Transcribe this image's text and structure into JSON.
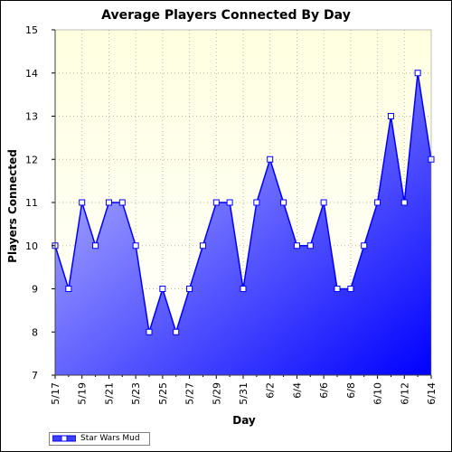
{
  "chart_data": {
    "type": "area",
    "title": "Average Players Connected By Day",
    "xlabel": "Day",
    "ylabel": "Players Connected",
    "ylim": [
      7,
      15
    ],
    "yticks": [
      7,
      8,
      9,
      10,
      11,
      12,
      13,
      14,
      15
    ],
    "x": [
      "5/17",
      "5/18",
      "5/19",
      "5/20",
      "5/21",
      "5/22",
      "5/23",
      "5/24",
      "5/25",
      "5/26",
      "5/27",
      "5/28",
      "5/29",
      "5/30",
      "5/31",
      "6/1",
      "6/2",
      "6/3",
      "6/4",
      "6/5",
      "6/6",
      "6/7",
      "6/8",
      "6/9",
      "6/10",
      "6/11",
      "6/12",
      "6/13",
      "6/14"
    ],
    "x_tick_labels": [
      "5/17",
      "5/19",
      "5/21",
      "5/23",
      "5/25",
      "5/27",
      "5/29",
      "5/31",
      "6/2",
      "6/4",
      "6/6",
      "6/8",
      "6/10",
      "6/12",
      "6/14"
    ],
    "series": [
      {
        "name": "Star Wars Mud",
        "values": [
          10,
          9,
          11,
          10,
          11,
          11,
          10,
          8,
          9,
          8,
          9,
          10,
          11,
          11,
          9,
          11,
          12,
          11,
          10,
          10,
          11,
          9,
          9,
          10,
          11,
          13,
          11,
          14,
          12
        ]
      }
    ],
    "grid": true,
    "legend_position": "bottom-left",
    "colors": {
      "plot_background_top": "#FFFFE0",
      "plot_background_bottom": "#FFFFFF",
      "line": "#0000FF",
      "fill_light": "#C8C8FF",
      "fill_dark": "#0000FF",
      "marker_fill": "#FFFFFF"
    }
  }
}
